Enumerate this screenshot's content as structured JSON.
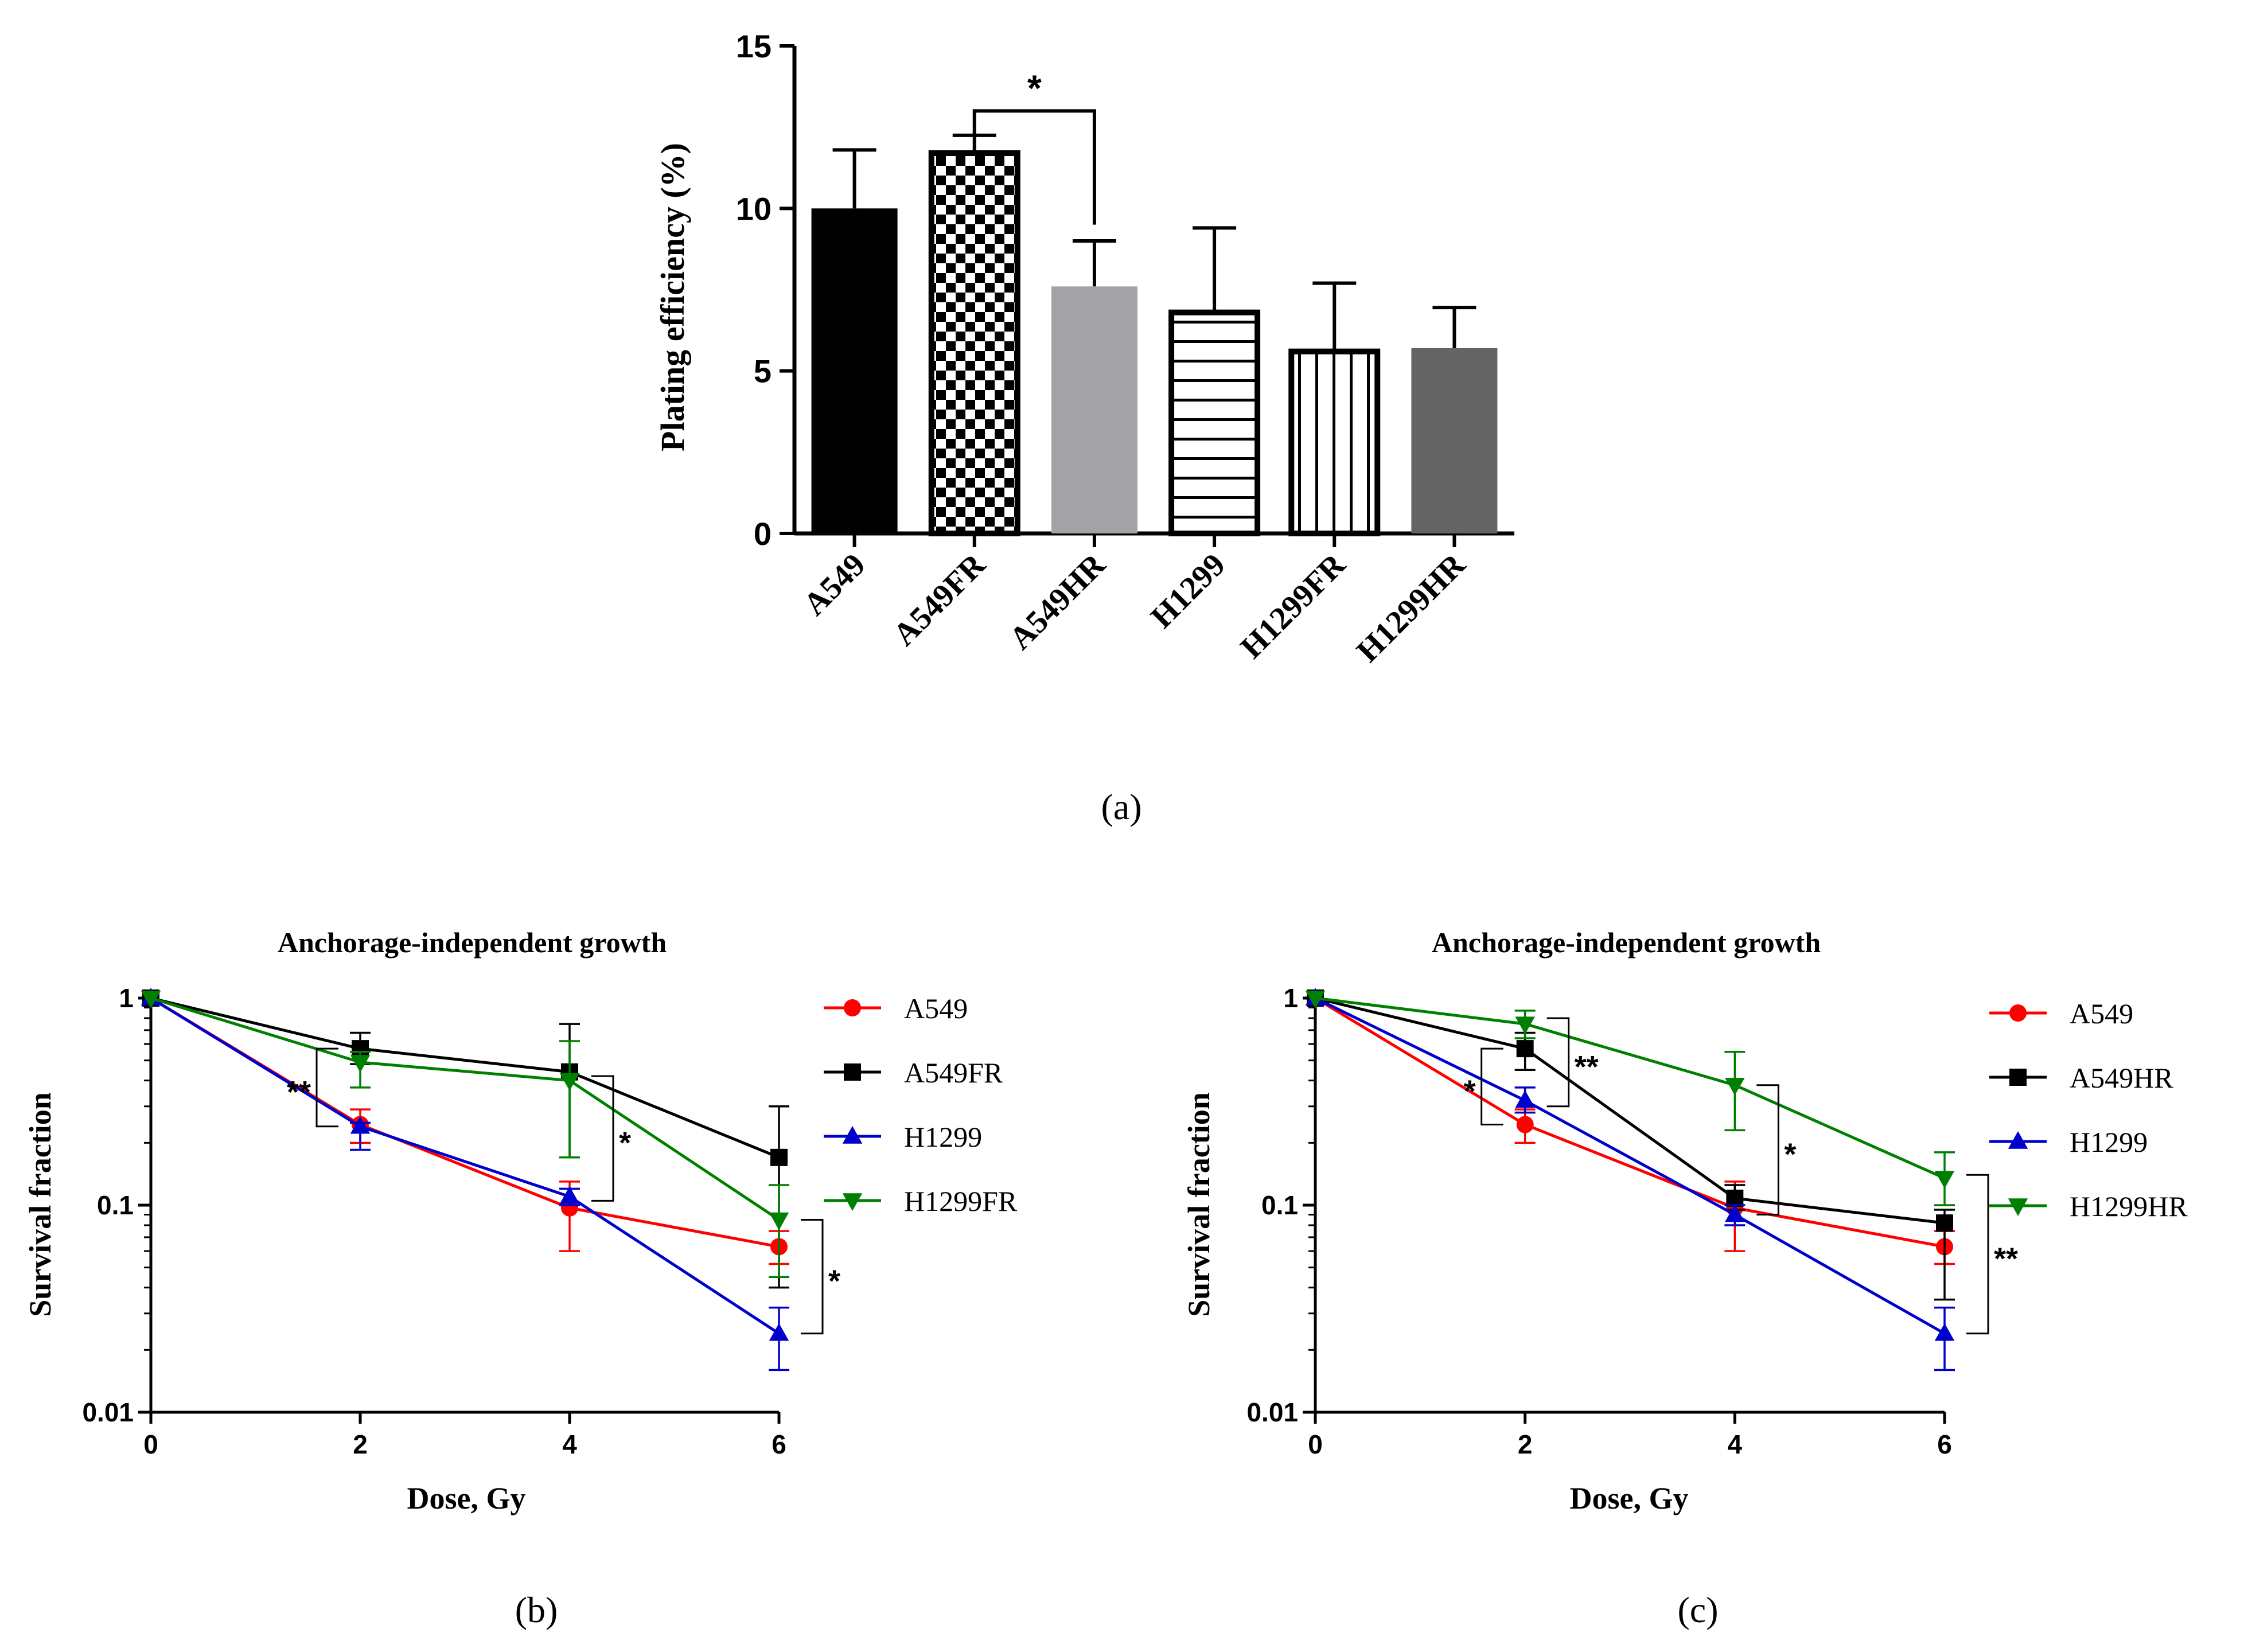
{
  "chart_data": [
    {
      "type": "bar",
      "panel_label": "(a)",
      "title": "",
      "xlabel": "",
      "ylabel": "Plating efficiency (%)",
      "ylim": [
        0,
        15
      ],
      "yticks": [
        "0",
        "5",
        "10",
        "15"
      ],
      "categories": [
        "A549",
        "A549FR",
        "A549HR",
        "H1299",
        "H1299FR",
        "H1299HR"
      ],
      "values": [
        10.0,
        11.7,
        7.6,
        6.8,
        5.6,
        5.7
      ],
      "errors": [
        1.8,
        0.55,
        1.4,
        2.6,
        2.1,
        1.25
      ],
      "annotations": [
        {
          "from": "A549FR",
          "to": "A549HR",
          "text": "*"
        }
      ]
    },
    {
      "type": "line",
      "panel_label": "(b)",
      "title": "Anchorage-independent growth",
      "xlabel": "Dose, Gy",
      "ylabel": "Survival fraction",
      "yscale": "log",
      "ylim": [
        0.01,
        1
      ],
      "xlim": [
        0,
        6
      ],
      "xticks": [
        "0",
        "2",
        "4",
        "6"
      ],
      "yticks": [
        "0.01",
        "0.1",
        "1"
      ],
      "x": [
        0,
        2,
        4,
        6
      ],
      "series": [
        {
          "name": "A549",
          "color": "#ff0000",
          "marker": "circle",
          "values": [
            1,
            0.245,
            0.097,
            0.063
          ],
          "err_hi": [
            1,
            0.29,
            0.13,
            0.075
          ],
          "err_lo": [
            1,
            0.2,
            0.06,
            0.052
          ]
        },
        {
          "name": "A549FR",
          "color": "#000000",
          "marker": "square",
          "values": [
            1,
            0.57,
            0.44,
            0.17
          ],
          "err_hi": [
            1,
            0.68,
            0.75,
            0.3
          ],
          "err_lo": [
            1,
            0.48,
            0.17,
            0.04
          ]
        },
        {
          "name": "H1299",
          "color": "#0000cc",
          "marker": "triangle-up",
          "values": [
            1,
            0.24,
            0.11,
            0.024
          ],
          "err_hi": [
            1,
            0.25,
            0.12,
            0.032
          ],
          "err_lo": [
            1,
            0.185,
            0.1,
            0.016
          ]
        },
        {
          "name": "H1299FR",
          "color": "#008000",
          "marker": "triangle-down",
          "values": [
            1,
            0.49,
            0.4,
            0.085
          ],
          "err_hi": [
            1,
            0.55,
            0.62,
            0.125
          ],
          "err_lo": [
            1,
            0.37,
            0.17,
            0.045
          ]
        }
      ],
      "annotations": [
        {
          "x": 2,
          "y_low": 0.24,
          "y_high": 0.57,
          "text": "**",
          "side": "left"
        },
        {
          "x": 4,
          "y_low": 0.105,
          "y_high": 0.42,
          "text": "*",
          "side": "right"
        },
        {
          "x": 6,
          "y_low": 0.024,
          "y_high": 0.085,
          "text": "*",
          "side": "right"
        }
      ]
    },
    {
      "type": "line",
      "panel_label": "(c)",
      "title": "Anchorage-independent growth",
      "xlabel": "Dose, Gy",
      "ylabel": "Survival fraction",
      "yscale": "log",
      "ylim": [
        0.01,
        1
      ],
      "xlim": [
        0,
        6
      ],
      "xticks": [
        "0",
        "2",
        "4",
        "6"
      ],
      "yticks": [
        "0.01",
        "0.1",
        "1"
      ],
      "x": [
        0,
        2,
        4,
        6
      ],
      "series": [
        {
          "name": "A549",
          "color": "#ff0000",
          "marker": "circle",
          "values": [
            1,
            0.245,
            0.097,
            0.063
          ],
          "err_hi": [
            1,
            0.29,
            0.13,
            0.075
          ],
          "err_lo": [
            1,
            0.2,
            0.06,
            0.052
          ]
        },
        {
          "name": "A549HR",
          "color": "#000000",
          "marker": "square",
          "values": [
            1,
            0.57,
            0.108,
            0.082
          ],
          "err_hi": [
            1,
            0.68,
            0.125,
            0.095
          ],
          "err_lo": [
            1,
            0.45,
            0.095,
            0.035
          ]
        },
        {
          "name": "H1299",
          "color": "#0000cc",
          "marker": "triangle-up",
          "values": [
            1,
            0.32,
            0.09,
            0.024
          ],
          "err_hi": [
            1,
            0.37,
            0.1,
            0.032
          ],
          "err_lo": [
            1,
            0.28,
            0.08,
            0.016
          ]
        },
        {
          "name": "H1299HR",
          "color": "#008000",
          "marker": "triangle-down",
          "values": [
            1,
            0.75,
            0.38,
            0.135
          ],
          "err_hi": [
            1,
            0.87,
            0.55,
            0.18
          ],
          "err_lo": [
            1,
            0.64,
            0.23,
            0.1
          ]
        }
      ],
      "annotations": [
        {
          "x": 2,
          "y_low": 0.245,
          "y_high": 0.57,
          "text": "*",
          "side": "left"
        },
        {
          "x": 2,
          "y_low": 0.3,
          "y_high": 0.8,
          "text": "**",
          "side": "right"
        },
        {
          "x": 4,
          "y_low": 0.09,
          "y_high": 0.38,
          "text": "*",
          "side": "right"
        },
        {
          "x": 6,
          "y_low": 0.024,
          "y_high": 0.14,
          "text": "**",
          "side": "right"
        }
      ]
    }
  ]
}
